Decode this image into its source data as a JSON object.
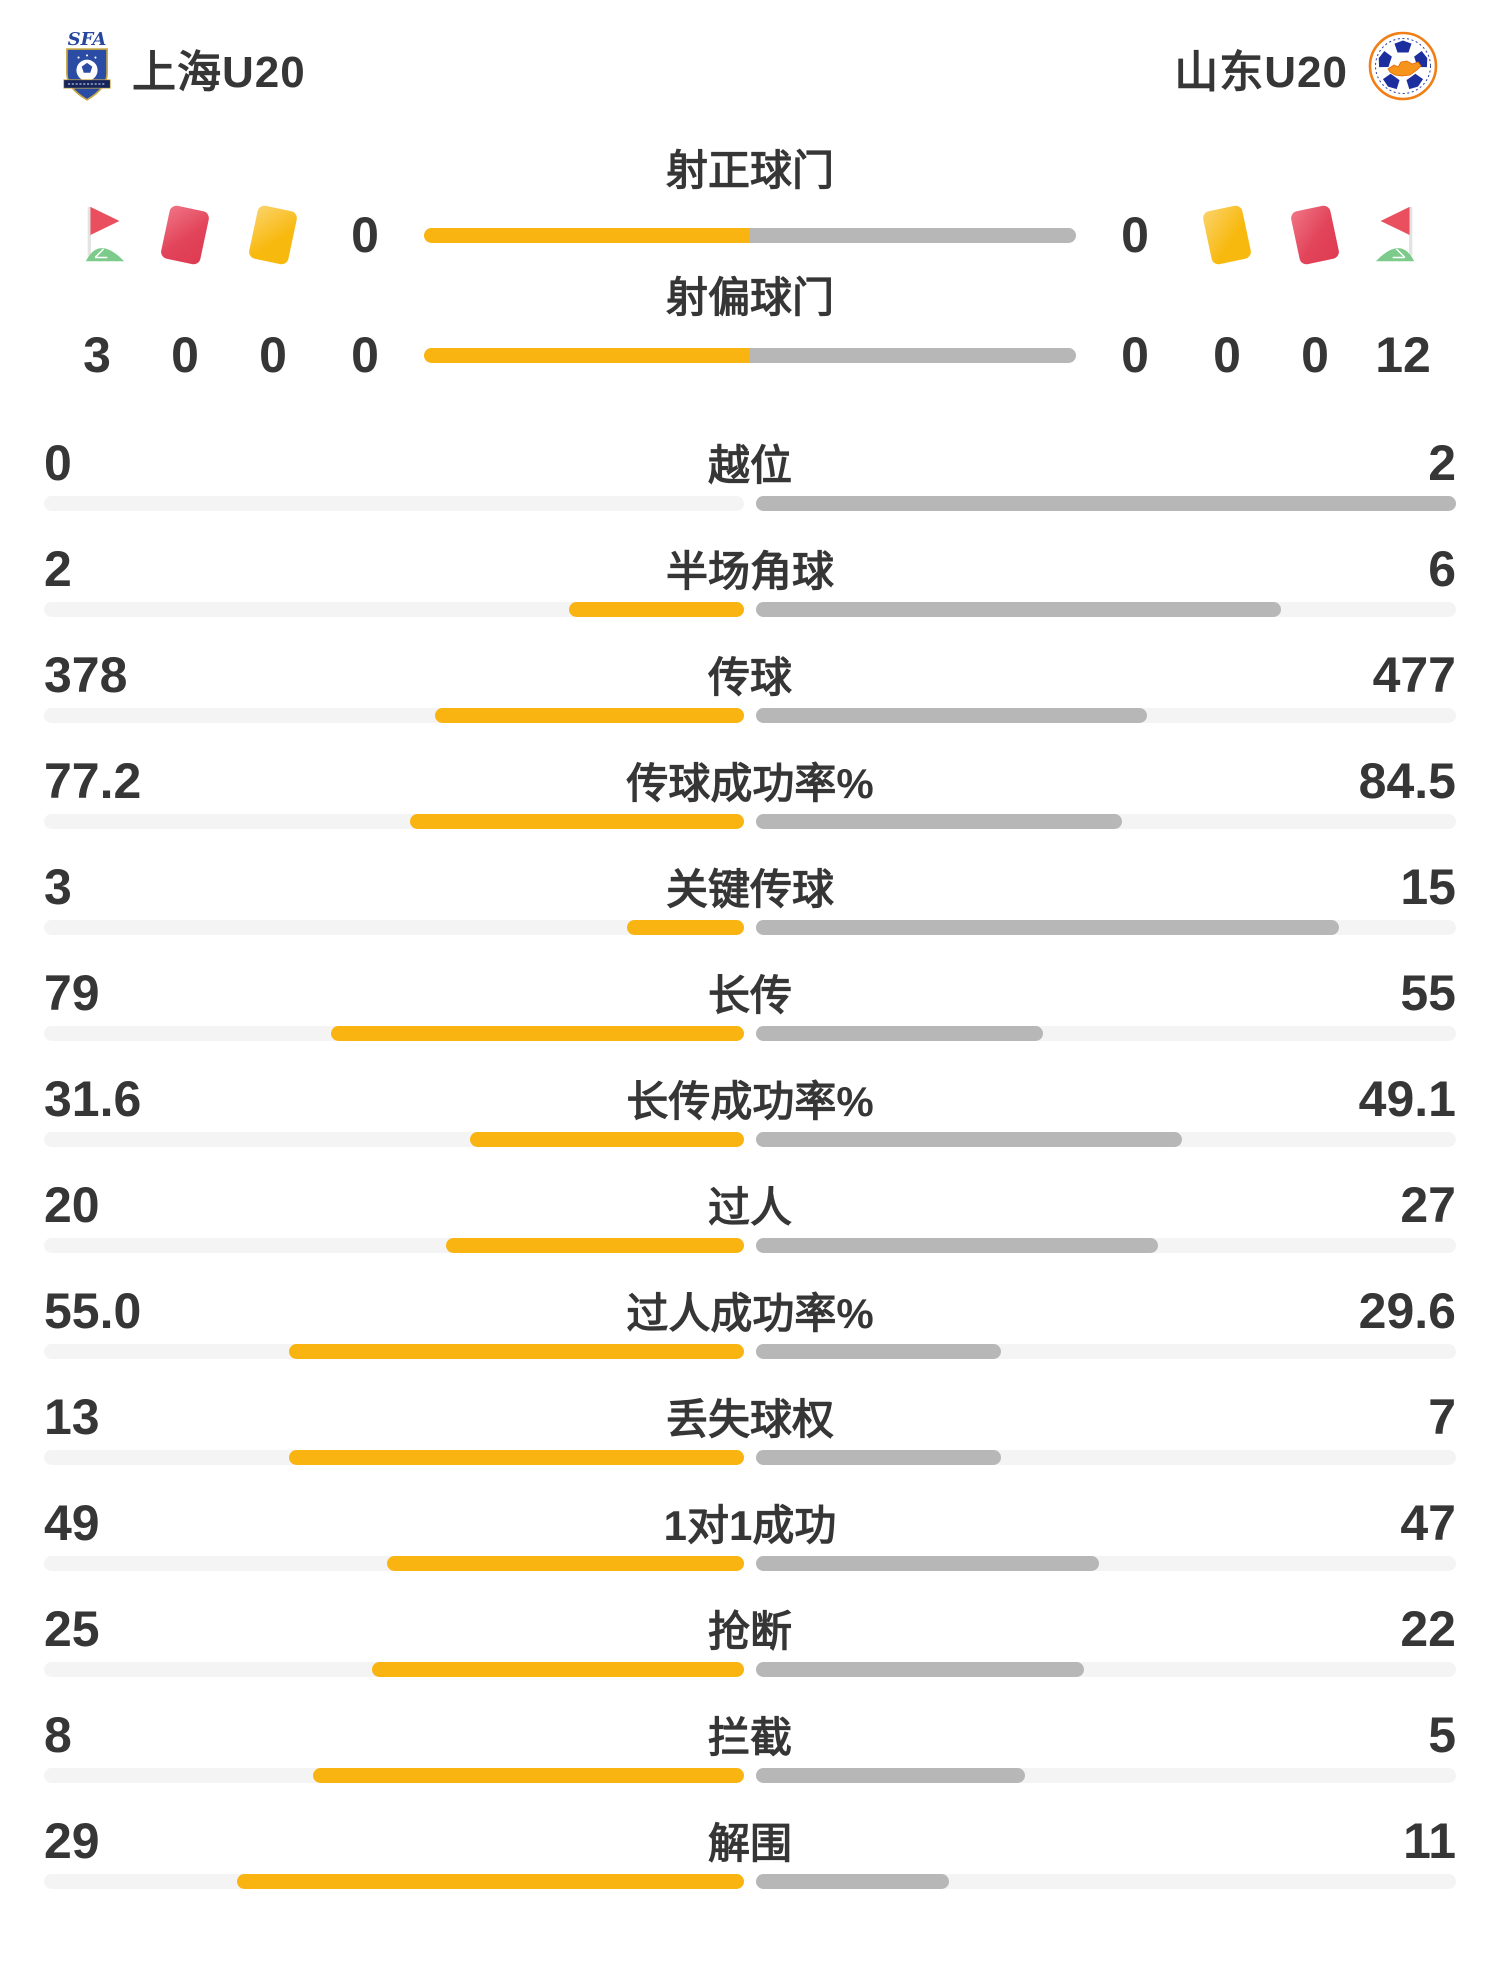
{
  "header": {
    "home": {
      "name": "上海U20",
      "badge": "sfa-crest"
    },
    "away": {
      "name": "山东U20",
      "badge": "shandong-fa-crest"
    }
  },
  "shots": {
    "on_target": {
      "label": "射正球门",
      "home": "0",
      "away": "0"
    },
    "off_target": {
      "label": "射偏球门",
      "home": "0",
      "away": "0"
    }
  },
  "cards_row": {
    "home": {
      "corner_flag": "3",
      "red_card": "0",
      "yellow_card": "0"
    },
    "away": {
      "yellow_card": "0",
      "red_card": "0",
      "corner_flag": "12"
    }
  },
  "stats": [
    {
      "label": "越位",
      "home": "0",
      "away": "2"
    },
    {
      "label": "半场角球",
      "home": "2",
      "away": "6"
    },
    {
      "label": "传球",
      "home": "378",
      "away": "477"
    },
    {
      "label": "传球成功率%",
      "home": "77.2",
      "away": "84.5"
    },
    {
      "label": "关键传球",
      "home": "3",
      "away": "15"
    },
    {
      "label": "长传",
      "home": "79",
      "away": "55"
    },
    {
      "label": "长传成功率%",
      "home": "31.6",
      "away": "49.1"
    },
    {
      "label": "过人",
      "home": "20",
      "away": "27"
    },
    {
      "label": "过人成功率%",
      "home": "55.0",
      "away": "29.6"
    },
    {
      "label": "丢失球权",
      "home": "13",
      "away": "7"
    },
    {
      "label": "1对1成功",
      "home": "49",
      "away": "47"
    },
    {
      "label": "抢断",
      "home": "25",
      "away": "22"
    },
    {
      "label": "拦截",
      "home": "8",
      "away": "5"
    },
    {
      "label": "解围",
      "home": "29",
      "away": "11"
    }
  ],
  "colors": {
    "home_fill": "#F9B412",
    "away_fill": "#B7B7B7",
    "track": "#F4F4F5",
    "text": "#363636",
    "red_card": "#E2445A",
    "yellow_card": "#F8B90F",
    "flag_red": "#E94F5F",
    "flag_green": "#7CCB8B"
  },
  "chart_data": {
    "type": "bar",
    "subtype": "horizontal two-sided comparison of match statistics",
    "teams": [
      "上海U20",
      "山东U20"
    ],
    "categories": [
      "射正球门",
      "射偏球门",
      "越位",
      "半场角球",
      "传球",
      "传球成功率%",
      "关键传球",
      "长传",
      "长传成功率%",
      "过人",
      "过人成功率%",
      "丢失球权",
      "1对1成功",
      "抢断",
      "拦截",
      "解围"
    ],
    "series": [
      {
        "name": "上海U20",
        "values": [
          0,
          0,
          0,
          2,
          378,
          77.2,
          3,
          79,
          31.6,
          20,
          55.0,
          13,
          49,
          25,
          8,
          29
        ]
      },
      {
        "name": "山东U20",
        "values": [
          0,
          0,
          2,
          6,
          477,
          84.5,
          15,
          55,
          49.1,
          27,
          29.6,
          7,
          47,
          22,
          5,
          11
        ]
      }
    ],
    "icon_counters": {
      "corner_flags": [
        3,
        12
      ],
      "red_cards": [
        0,
        0
      ],
      "yellow_cards": [
        0,
        0
      ]
    },
    "legend_position": "none",
    "grid": false,
    "note": "each bar is filled from the center outward, length proportional to value/(home+away); left fill yellow, right fill gray"
  }
}
